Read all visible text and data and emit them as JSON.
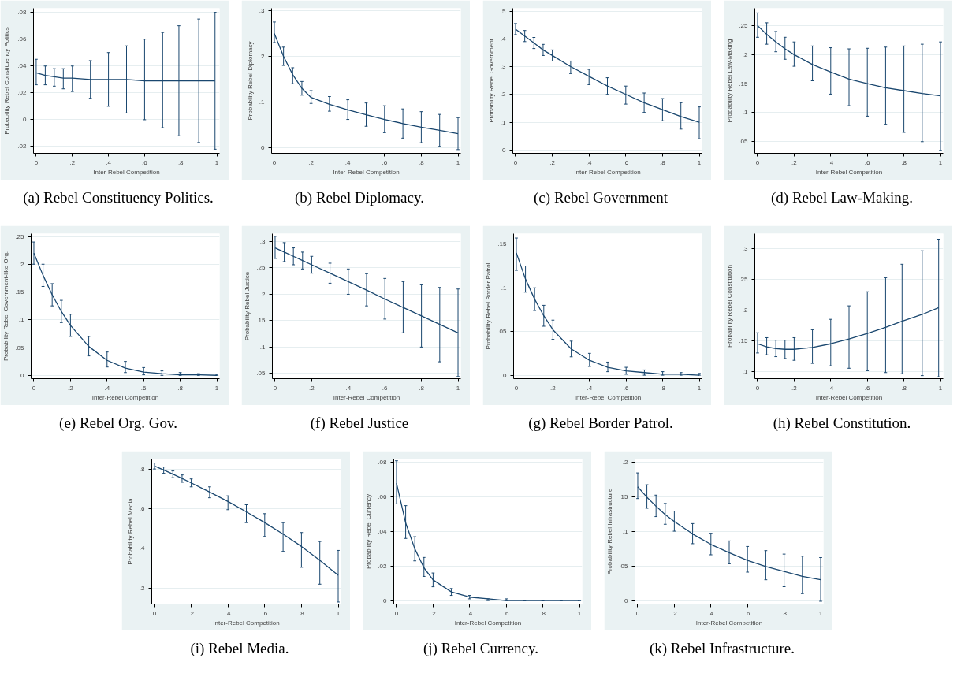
{
  "chart_data": [
    {
      "type": "line",
      "title": "(a) Rebel Constituency Politics.",
      "xlabel": "Inter-Rebel Competition",
      "ylabel": "Probability Rebel Constituency Politics",
      "grid": "y",
      "x": [
        0,
        0.05,
        0.1,
        0.15,
        0.2,
        0.3,
        0.4,
        0.5,
        0.6,
        0.7,
        0.79,
        0.9,
        0.99
      ],
      "xlim": [
        -0.015,
        1.015
      ],
      "xticks": [
        0,
        {
          "value": 0.2,
          "label": ".2"
        },
        {
          "value": 0.4,
          "label": ".4"
        },
        {
          "value": 0.6,
          "label": ".6"
        },
        {
          "value": 0.8,
          "label": ".8"
        },
        1
      ],
      "ylim": [
        -0.025,
        0.083
      ],
      "yticks": [
        {
          "value": -0.02,
          "label": "-.02"
        },
        0,
        {
          "value": 0.02,
          "label": ".02"
        },
        {
          "value": 0.04,
          "label": ".04"
        },
        {
          "value": 0.06,
          "label": ".06"
        },
        {
          "value": 0.08,
          "label": ".08"
        }
      ],
      "series": [
        {
          "color": "#1a476f",
          "values": [
            0.035,
            0.033,
            0.032,
            0.031,
            0.031,
            0.03,
            0.03,
            0.03,
            0.029,
            0.029,
            0.029,
            0.029,
            0.029
          ],
          "errors": [
            [
              0.026,
              0.045
            ],
            [
              0.026,
              0.04
            ],
            [
              0.025,
              0.038
            ],
            [
              0.023,
              0.038
            ],
            [
              0.021,
              0.04
            ],
            [
              0.016,
              0.044
            ],
            [
              0.01,
              0.05
            ],
            [
              0.005,
              0.055
            ],
            [
              0.0,
              0.06
            ],
            [
              -0.006,
              0.065
            ],
            [
              -0.012,
              0.07
            ],
            [
              -0.017,
              0.075
            ],
            [
              -0.022,
              0.08
            ]
          ]
        }
      ]
    },
    {
      "type": "line",
      "title": "(b) Rebel Diplomacy.",
      "xlabel": "Inter-Rebel Competition",
      "ylabel": "Probability Rebel Diplomacy",
      "grid": "y",
      "x": [
        0,
        0.05,
        0.1,
        0.15,
        0.2,
        0.3,
        0.4,
        0.5,
        0.6,
        0.7,
        0.8,
        0.9,
        1
      ],
      "xlim": [
        -0.015,
        1.015
      ],
      "xticks": [
        0,
        {
          "value": 0.2,
          "label": ".2"
        },
        {
          "value": 0.4,
          "label": ".4"
        },
        {
          "value": 0.6,
          "label": ".6"
        },
        {
          "value": 0.8,
          "label": ".8"
        },
        1
      ],
      "ylim": [
        -0.012,
        0.305
      ],
      "yticks": [
        0,
        {
          "value": 0.1,
          "label": ".1"
        },
        {
          "value": 0.2,
          "label": ".2"
        },
        {
          "value": 0.3,
          "label": ".3"
        }
      ],
      "series": [
        {
          "color": "#1a476f",
          "values": [
            0.25,
            0.2,
            0.16,
            0.13,
            0.11,
            0.095,
            0.083,
            0.072,
            0.062,
            0.053,
            0.045,
            0.038,
            0.031
          ],
          "errors": [
            [
              0.23,
              0.275
            ],
            [
              0.18,
              0.22
            ],
            [
              0.14,
              0.175
            ],
            [
              0.115,
              0.145
            ],
            [
              0.097,
              0.125
            ],
            [
              0.08,
              0.112
            ],
            [
              0.062,
              0.105
            ],
            [
              0.047,
              0.098
            ],
            [
              0.033,
              0.092
            ],
            [
              0.021,
              0.085
            ],
            [
              0.011,
              0.079
            ],
            [
              0.003,
              0.073
            ],
            [
              -0.004,
              0.066
            ]
          ]
        }
      ]
    },
    {
      "type": "line",
      "title": "(c) Rebel Government",
      "xlabel": "Inter-Rebel Competition",
      "ylabel": "Probability Rebel Government",
      "grid": "y",
      "x": [
        0,
        0.05,
        0.1,
        0.15,
        0.2,
        0.3,
        0.4,
        0.5,
        0.6,
        0.7,
        0.8,
        0.9,
        1
      ],
      "xlim": [
        -0.015,
        1.015
      ],
      "xticks": [
        0,
        {
          "value": 0.2,
          "label": ".2"
        },
        {
          "value": 0.4,
          "label": ".4"
        },
        {
          "value": 0.6,
          "label": ".6"
        },
        {
          "value": 0.8,
          "label": ".8"
        },
        1
      ],
      "ylim": [
        -0.012,
        0.51
      ],
      "yticks": [
        0,
        {
          "value": 0.1,
          "label": ".1"
        },
        {
          "value": 0.2,
          "label": ".2"
        },
        {
          "value": 0.3,
          "label": ".3"
        },
        {
          "value": 0.4,
          "label": ".4"
        },
        {
          "value": 0.5,
          "label": ".5"
        }
      ],
      "series": [
        {
          "color": "#1a476f",
          "values": [
            0.435,
            0.41,
            0.385,
            0.36,
            0.34,
            0.3,
            0.265,
            0.23,
            0.2,
            0.17,
            0.145,
            0.12,
            0.1
          ],
          "errors": [
            [
              0.415,
              0.455
            ],
            [
              0.39,
              0.43
            ],
            [
              0.365,
              0.405
            ],
            [
              0.34,
              0.38
            ],
            [
              0.32,
              0.36
            ],
            [
              0.275,
              0.32
            ],
            [
              0.235,
              0.29
            ],
            [
              0.2,
              0.26
            ],
            [
              0.165,
              0.23
            ],
            [
              0.135,
              0.205
            ],
            [
              0.105,
              0.185
            ],
            [
              0.075,
              0.17
            ],
            [
              0.04,
              0.155
            ]
          ]
        }
      ]
    },
    {
      "type": "line",
      "title": "(d) Rebel Law-Making.",
      "xlabel": "Inter-Rebel Competition",
      "ylabel": "Probability Rebel Law-Making",
      "grid": "y",
      "x": [
        0,
        0.05,
        0.1,
        0.15,
        0.2,
        0.3,
        0.4,
        0.5,
        0.6,
        0.7,
        0.8,
        0.9,
        1
      ],
      "xlim": [
        -0.015,
        1.015
      ],
      "xticks": [
        0,
        {
          "value": 0.2,
          "label": ".2"
        },
        {
          "value": 0.4,
          "label": ".4"
        },
        {
          "value": 0.6,
          "label": ".6"
        },
        {
          "value": 0.8,
          "label": ".8"
        },
        1
      ],
      "ylim": [
        0.03,
        0.28
      ],
      "yticks": [
        {
          "value": 0.05,
          "label": ".05"
        },
        {
          "value": 0.1,
          "label": ".1"
        },
        {
          "value": 0.15,
          "label": ".15"
        },
        {
          "value": 0.2,
          "label": ".2"
        },
        {
          "value": 0.25,
          "label": ".25"
        }
      ],
      "series": [
        {
          "color": "#1a476f",
          "values": [
            0.25,
            0.235,
            0.222,
            0.21,
            0.2,
            0.183,
            0.17,
            0.158,
            0.15,
            0.143,
            0.138,
            0.133,
            0.129
          ],
          "errors": [
            [
              0.23,
              0.272
            ],
            [
              0.218,
              0.255
            ],
            [
              0.205,
              0.24
            ],
            [
              0.192,
              0.23
            ],
            [
              0.18,
              0.222
            ],
            [
              0.155,
              0.215
            ],
            [
              0.132,
              0.212
            ],
            [
              0.112,
              0.21
            ],
            [
              0.094,
              0.211
            ],
            [
              0.08,
              0.213
            ],
            [
              0.066,
              0.215
            ],
            [
              0.05,
              0.218
            ],
            [
              0.035,
              0.222
            ]
          ]
        }
      ]
    },
    {
      "type": "line",
      "title": "(e) Rebel Org. Gov.",
      "xlabel": "Inter-Rebel Competition",
      "ylabel": "Probability Rebel Government-like Org.",
      "grid": "y",
      "x": [
        0,
        0.05,
        0.1,
        0.15,
        0.2,
        0.3,
        0.4,
        0.5,
        0.6,
        0.7,
        0.8,
        0.9,
        1
      ],
      "xlim": [
        -0.015,
        1.015
      ],
      "xticks": [
        0,
        {
          "value": 0.2,
          "label": ".2"
        },
        {
          "value": 0.4,
          "label": ".4"
        },
        {
          "value": 0.6,
          "label": ".6"
        },
        {
          "value": 0.8,
          "label": ".8"
        },
        1
      ],
      "ylim": [
        -0.006,
        0.255
      ],
      "yticks": [
        0,
        {
          "value": 0.05,
          "label": ".05"
        },
        {
          "value": 0.1,
          "label": ".1"
        },
        {
          "value": 0.15,
          "label": ".15"
        },
        {
          "value": 0.2,
          "label": ".2"
        },
        {
          "value": 0.25,
          "label": ".25"
        }
      ],
      "series": [
        {
          "color": "#1a476f",
          "values": [
            0.22,
            0.18,
            0.145,
            0.115,
            0.09,
            0.052,
            0.027,
            0.013,
            0.006,
            0.003,
            0.001,
            0.001,
            0
          ],
          "errors": [
            [
              0.2,
              0.24
            ],
            [
              0.16,
              0.2
            ],
            [
              0.125,
              0.165
            ],
            [
              0.095,
              0.135
            ],
            [
              0.07,
              0.11
            ],
            [
              0.035,
              0.07
            ],
            [
              0.015,
              0.042
            ],
            [
              0.005,
              0.025
            ],
            [
              0.001,
              0.014
            ],
            [
              0,
              0.008
            ],
            [
              0,
              0.005
            ],
            [
              0,
              0.003
            ],
            [
              0,
              0.002
            ]
          ]
        }
      ]
    },
    {
      "type": "line",
      "title": "(f) Rebel Justice",
      "xlabel": "Inter-Rebel Competition",
      "ylabel": "Probability Rebel Justice",
      "grid": "y",
      "x": [
        0,
        0.05,
        0.1,
        0.15,
        0.2,
        0.3,
        0.4,
        0.5,
        0.6,
        0.7,
        0.8,
        0.9,
        1
      ],
      "xlim": [
        -0.015,
        1.015
      ],
      "xticks": [
        0,
        {
          "value": 0.2,
          "label": ".2"
        },
        {
          "value": 0.4,
          "label": ".4"
        },
        {
          "value": 0.6,
          "label": ".6"
        },
        {
          "value": 0.8,
          "label": ".8"
        },
        1
      ],
      "ylim": [
        0.04,
        0.315
      ],
      "yticks": [
        {
          "value": 0.05,
          "label": ".05"
        },
        {
          "value": 0.1,
          "label": ".1"
        },
        {
          "value": 0.15,
          "label": ".15"
        },
        {
          "value": 0.2,
          "label": ".2"
        },
        {
          "value": 0.25,
          "label": ".25"
        },
        {
          "value": 0.3,
          "label": ".3"
        }
      ],
      "series": [
        {
          "color": "#1a476f",
          "values": [
            0.288,
            0.28,
            0.272,
            0.264,
            0.256,
            0.24,
            0.224,
            0.208,
            0.191,
            0.175,
            0.159,
            0.143,
            0.127
          ],
          "errors": [
            [
              0.268,
              0.31
            ],
            [
              0.262,
              0.298
            ],
            [
              0.256,
              0.288
            ],
            [
              0.248,
              0.28
            ],
            [
              0.24,
              0.272
            ],
            [
              0.221,
              0.259
            ],
            [
              0.2,
              0.248
            ],
            [
              0.178,
              0.239
            ],
            [
              0.153,
              0.23
            ],
            [
              0.127,
              0.224
            ],
            [
              0.1,
              0.218
            ],
            [
              0.072,
              0.213
            ],
            [
              0.044,
              0.21
            ]
          ]
        }
      ]
    },
    {
      "type": "line",
      "title": "(g) Rebel Border Patrol.",
      "xlabel": "Inter-Rebel Competition",
      "ylabel": "Probability Rebel Border Patrol",
      "grid": "y",
      "x": [
        0,
        0.05,
        0.1,
        0.15,
        0.2,
        0.3,
        0.4,
        0.5,
        0.6,
        0.7,
        0.8,
        0.9,
        1
      ],
      "xlim": [
        -0.015,
        1.015
      ],
      "xticks": [
        0,
        {
          "value": 0.2,
          "label": ".2"
        },
        {
          "value": 0.4,
          "label": ".4"
        },
        {
          "value": 0.6,
          "label": ".6"
        },
        {
          "value": 0.8,
          "label": ".8"
        },
        1
      ],
      "ylim": [
        -0.004,
        0.162
      ],
      "yticks": [
        0,
        {
          "value": 0.05,
          "label": ".05"
        },
        {
          "value": 0.1,
          "label": ".1"
        },
        {
          "value": 0.15,
          "label": ".15"
        }
      ],
      "series": [
        {
          "color": "#1a476f",
          "values": [
            0.14,
            0.11,
            0.087,
            0.068,
            0.052,
            0.03,
            0.017,
            0.009,
            0.005,
            0.003,
            0.001,
            0.001,
            0
          ],
          "errors": [
            [
              0.12,
              0.157
            ],
            [
              0.095,
              0.125
            ],
            [
              0.074,
              0.1
            ],
            [
              0.056,
              0.08
            ],
            [
              0.041,
              0.063
            ],
            [
              0.021,
              0.039
            ],
            [
              0.01,
              0.025
            ],
            [
              0.004,
              0.015
            ],
            [
              0.001,
              0.009
            ],
            [
              0,
              0.006
            ],
            [
              0,
              0.004
            ],
            [
              0,
              0.003
            ],
            [
              0,
              0.002
            ]
          ]
        }
      ]
    },
    {
      "type": "line",
      "title": "(h) Rebel Constitution.",
      "xlabel": "Inter-Rebel Competition",
      "ylabel": "Probability Rebel Constitution",
      "grid": "y",
      "x": [
        0,
        0.05,
        0.1,
        0.15,
        0.2,
        0.3,
        0.4,
        0.5,
        0.6,
        0.7,
        0.79,
        0.9,
        0.99
      ],
      "xlim": [
        -0.015,
        1.015
      ],
      "xticks": [
        0,
        {
          "value": 0.2,
          "label": ".2"
        },
        {
          "value": 0.4,
          "label": ".4"
        },
        {
          "value": 0.6,
          "label": ".6"
        },
        {
          "value": 0.8,
          "label": ".8"
        },
        1
      ],
      "ylim": [
        0.088,
        0.325
      ],
      "yticks": [
        {
          "value": 0.1,
          "label": ".1"
        },
        {
          "value": 0.15,
          "label": ".15"
        },
        {
          "value": 0.2,
          "label": ".2"
        },
        {
          "value": 0.25,
          "label": ".25"
        },
        {
          "value": 0.3,
          "label": ".3"
        }
      ],
      "series": [
        {
          "color": "#1a476f",
          "values": [
            0.145,
            0.14,
            0.137,
            0.136,
            0.136,
            0.139,
            0.145,
            0.153,
            0.162,
            0.172,
            0.182,
            0.193,
            0.204
          ],
          "errors": [
            [
              0.13,
              0.163
            ],
            [
              0.127,
              0.155
            ],
            [
              0.124,
              0.151
            ],
            [
              0.121,
              0.151
            ],
            [
              0.118,
              0.155
            ],
            [
              0.113,
              0.168
            ],
            [
              0.109,
              0.185
            ],
            [
              0.105,
              0.207
            ],
            [
              0.101,
              0.23
            ],
            [
              0.098,
              0.253
            ],
            [
              0.096,
              0.275
            ],
            [
              0.093,
              0.297
            ],
            [
              0.091,
              0.316
            ]
          ]
        }
      ]
    },
    {
      "type": "line",
      "title": "(i) Rebel Media.",
      "xlabel": "Inter-Rebel Competition",
      "ylabel": "Probability Rebel Media",
      "grid": "y",
      "x": [
        0,
        0.05,
        0.1,
        0.15,
        0.2,
        0.3,
        0.4,
        0.5,
        0.6,
        0.7,
        0.8,
        0.9,
        1
      ],
      "xlim": [
        -0.015,
        1.015
      ],
      "xticks": [
        0,
        {
          "value": 0.2,
          "label": ".2"
        },
        {
          "value": 0.4,
          "label": ".4"
        },
        {
          "value": 0.6,
          "label": ".6"
        },
        {
          "value": 0.8,
          "label": ".8"
        },
        1
      ],
      "ylim": [
        0.12,
        0.85
      ],
      "yticks": [
        {
          "value": 0.2,
          "label": ".2"
        },
        {
          "value": 0.4,
          "label": ".4"
        },
        {
          "value": 0.6,
          "label": ".6"
        },
        {
          "value": 0.8,
          "label": ".8"
        }
      ],
      "series": [
        {
          "color": "#1a476f",
          "values": [
            0.815,
            0.795,
            0.774,
            0.752,
            0.73,
            0.684,
            0.636,
            0.584,
            0.53,
            0.472,
            0.41,
            0.34,
            0.265
          ],
          "errors": [
            [
              0.8,
              0.83
            ],
            [
              0.778,
              0.81
            ],
            [
              0.756,
              0.79
            ],
            [
              0.733,
              0.77
            ],
            [
              0.71,
              0.75
            ],
            [
              0.655,
              0.71
            ],
            [
              0.595,
              0.665
            ],
            [
              0.53,
              0.62
            ],
            [
              0.46,
              0.575
            ],
            [
              0.385,
              0.53
            ],
            [
              0.305,
              0.48
            ],
            [
              0.22,
              0.435
            ],
            [
              0.13,
              0.39
            ]
          ]
        }
      ]
    },
    {
      "type": "line",
      "title": "(j) Rebel Currency.",
      "xlabel": "Inter-Rebel Competition",
      "ylabel": "Probability Rebel Currency",
      "grid": "y",
      "x": [
        0,
        0.05,
        0.1,
        0.15,
        0.2,
        0.3,
        0.4,
        0.5,
        0.6,
        0.7,
        0.8,
        0.9,
        1
      ],
      "xlim": [
        -0.015,
        1.015
      ],
      "xticks": [
        0,
        {
          "value": 0.2,
          "label": ".2"
        },
        {
          "value": 0.4,
          "label": ".4"
        },
        {
          "value": 0.6,
          "label": ".6"
        },
        {
          "value": 0.8,
          "label": ".8"
        },
        1
      ],
      "ylim": [
        -0.002,
        0.082
      ],
      "yticks": [
        0,
        {
          "value": 0.02,
          "label": ".02"
        },
        {
          "value": 0.04,
          "label": ".04"
        },
        {
          "value": 0.06,
          "label": ".06"
        },
        {
          "value": 0.08,
          "label": ".08"
        }
      ],
      "series": [
        {
          "color": "#1a476f",
          "values": [
            0.068,
            0.045,
            0.03,
            0.019,
            0.012,
            0.005,
            0.002,
            0.001,
            0,
            0,
            0,
            0,
            0
          ],
          "errors": [
            [
              0.056,
              0.081
            ],
            [
              0.036,
              0.055
            ],
            [
              0.023,
              0.037
            ],
            [
              0.014,
              0.025
            ],
            [
              0.008,
              0.016
            ],
            [
              0.003,
              0.007
            ],
            [
              0.001,
              0.003
            ],
            [
              0,
              0.001
            ],
            [
              0,
              0.001
            ],
            [
              0,
              0
            ],
            [
              0,
              0
            ],
            [
              0,
              0
            ],
            [
              0,
              0
            ]
          ]
        }
      ]
    },
    {
      "type": "line",
      "title": "(k) Rebel Infrastructure.",
      "xlabel": "Inter-Rebel Competition",
      "ylabel": "Probability Rebel Infrastructure",
      "grid": "y",
      "x": [
        0,
        0.05,
        0.1,
        0.15,
        0.2,
        0.3,
        0.4,
        0.5,
        0.6,
        0.7,
        0.8,
        0.9,
        1
      ],
      "xlim": [
        -0.015,
        1.015
      ],
      "xticks": [
        0,
        {
          "value": 0.2,
          "label": ".2"
        },
        {
          "value": 0.4,
          "label": ".4"
        },
        {
          "value": 0.6,
          "label": ".6"
        },
        {
          "value": 0.8,
          "label": ".8"
        },
        1
      ],
      "ylim": [
        -0.004,
        0.205
      ],
      "yticks": [
        0,
        {
          "value": 0.05,
          "label": ".05"
        },
        {
          "value": 0.1,
          "label": ".1"
        },
        {
          "value": 0.15,
          "label": ".15"
        },
        {
          "value": 0.2,
          "label": ".2"
        }
      ],
      "series": [
        {
          "color": "#1a476f",
          "values": [
            0.165,
            0.15,
            0.137,
            0.125,
            0.115,
            0.097,
            0.082,
            0.07,
            0.059,
            0.05,
            0.043,
            0.036,
            0.031
          ],
          "errors": [
            [
              0.148,
              0.185
            ],
            [
              0.134,
              0.168
            ],
            [
              0.122,
              0.153
            ],
            [
              0.111,
              0.141
            ],
            [
              0.101,
              0.13
            ],
            [
              0.083,
              0.112
            ],
            [
              0.067,
              0.098
            ],
            [
              0.054,
              0.087
            ],
            [
              0.042,
              0.079
            ],
            [
              0.031,
              0.073
            ],
            [
              0.021,
              0.068
            ],
            [
              0.011,
              0.065
            ],
            [
              0,
              0.063
            ]
          ]
        }
      ]
    }
  ]
}
